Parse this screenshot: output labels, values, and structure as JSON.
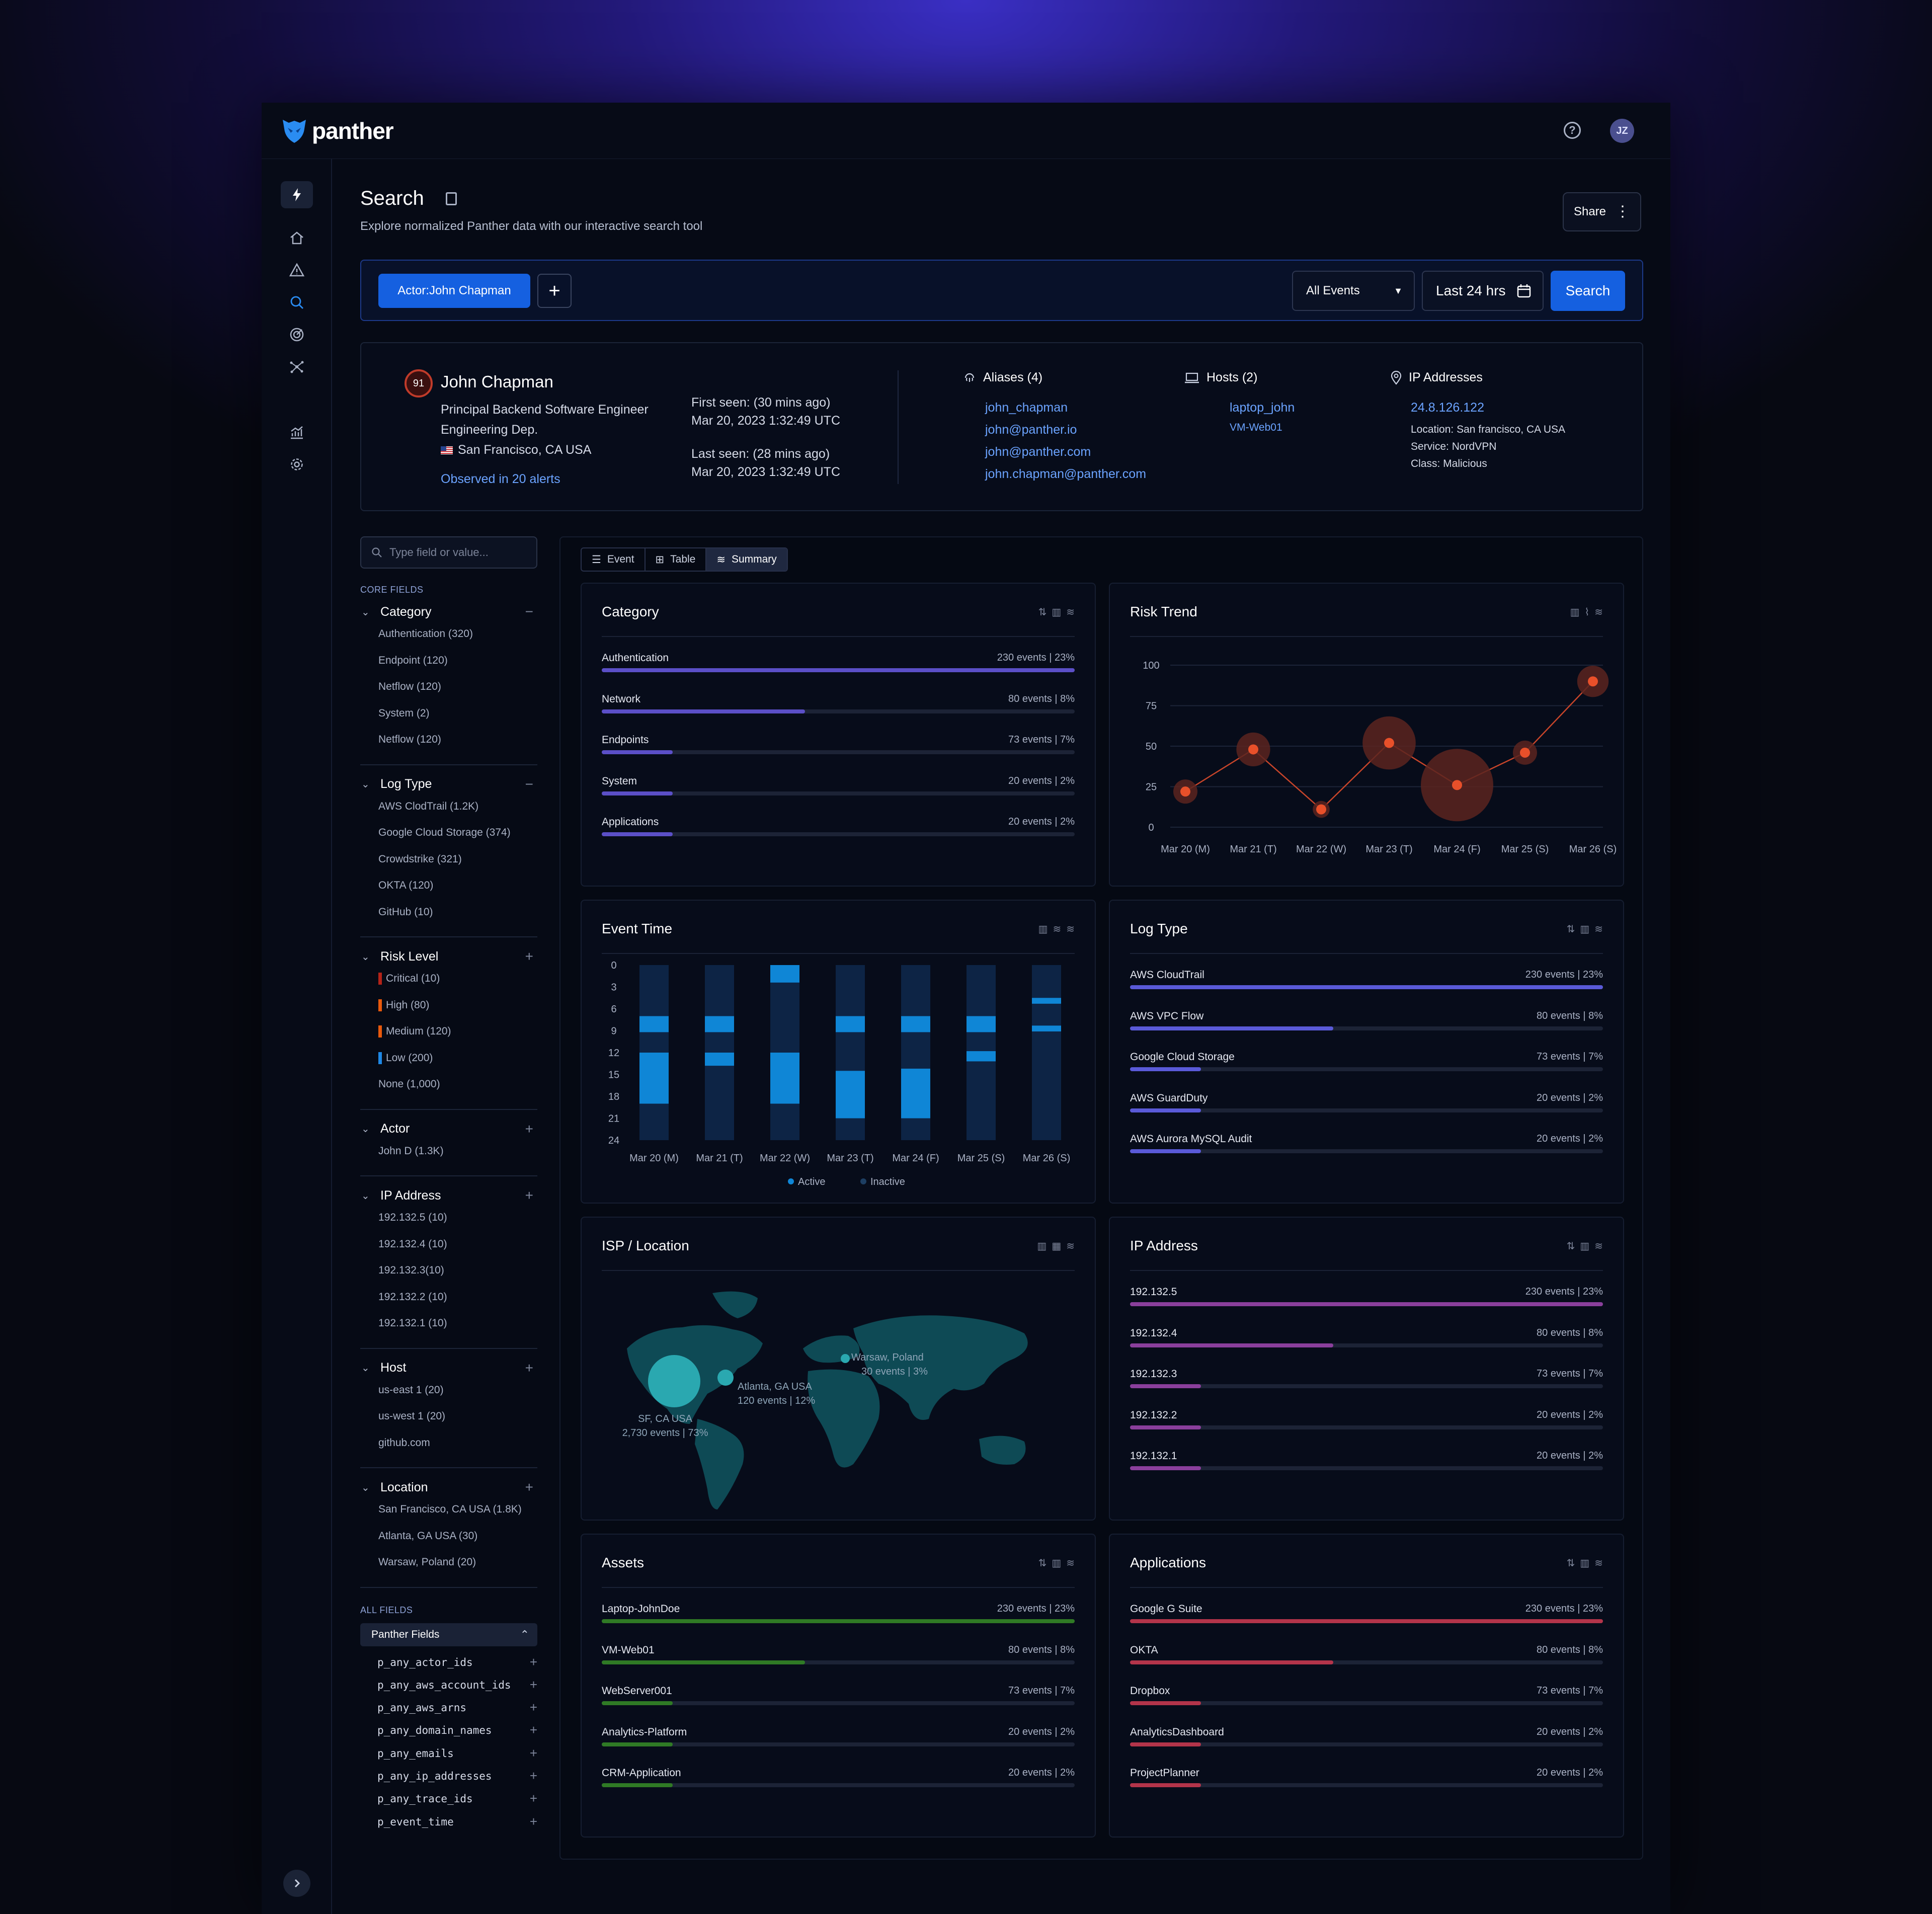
{
  "app": {
    "logo": "panther",
    "avatar": "JZ"
  },
  "page": {
    "title": "Search",
    "subtitle": "Explore normalized Panther data with our interactive search tool",
    "share": "Share"
  },
  "search": {
    "chip": "Actor:John Chapman",
    "events": "All Events",
    "range": "Last 24 hrs",
    "button": "Search"
  },
  "profile": {
    "risk": "91",
    "name": "John Chapman",
    "role": "Principal Backend Software Engineer",
    "dept": "Engineering Dep.",
    "location": "San Francisco, CA USA",
    "observed": "Observed in 20 alerts",
    "first_seen_label": "First seen: (30 mins ago)",
    "first_seen": "Mar 20, 2023 1:32:49 UTC",
    "last_seen_label": "Last seen: (28 mins ago)",
    "last_seen": "Mar 20, 2023 1:32:49 UTC",
    "aliases_title": "Aliases (4)",
    "aliases": [
      "john_chapman",
      "john@panther.io",
      "john@panther.com",
      "john.chapman@panther.com"
    ],
    "hosts_title": "Hosts (2)",
    "hosts": [
      "laptop_john",
      "VM-Web01"
    ],
    "ip_title": "IP Addresses",
    "ip": "24.8.126.122",
    "ip_location": "Location: San francisco, CA USA",
    "ip_service": "Service: NordVPN",
    "ip_class": "Class: Malicious"
  },
  "fields": {
    "placeholder": "Type field or value...",
    "core_label": "CORE FIELDS",
    "all_label": "ALL FIELDS",
    "panther_fields": "Panther Fields",
    "groups": [
      {
        "name": "Category",
        "sym": "−",
        "items": [
          "Authentication (320)",
          "Endpoint (120)",
          "Netflow (120)",
          "System  (2)",
          "Netflow (120)"
        ]
      },
      {
        "name": "Log Type",
        "sym": "−",
        "items": [
          "AWS ClodTrail (1.2K)",
          "Google Cloud Storage (374)",
          "Crowdstrike (321)",
          "OKTA (120)",
          "GitHub (10)"
        ]
      },
      {
        "name": "Risk Level",
        "sym": "+",
        "items": [
          "Critical (10)",
          "High (80)",
          "Medium (120)",
          "Low (200)",
          "None (1,000)"
        ]
      },
      {
        "name": "Actor",
        "sym": "+",
        "items": [
          "John D (1.3K)"
        ]
      },
      {
        "name": "IP Address",
        "sym": "+",
        "items": [
          "192.132.5 (10)",
          "192.132.4 (10)",
          "192.132.3(10)",
          "192.132.2 (10)",
          "192.132.1 (10)"
        ]
      },
      {
        "name": "Host",
        "sym": "+",
        "items": [
          "us-east 1 (20)",
          "us-west 1 (20)",
          "github.com"
        ]
      },
      {
        "name": "Location",
        "sym": "+",
        "items": [
          "San Francisco, CA USA (1.8K)",
          "Atlanta, GA USA (30)",
          "Warsaw, Poland (20)"
        ]
      }
    ],
    "risk_colors": [
      "#b42318",
      "#e8590c",
      "#e8590c",
      "#1e88e5",
      ""
    ],
    "panther_items": [
      "p_any_actor_ids",
      "p_any_aws_account_ids",
      "p_any_aws_arns",
      "p_any_domain_names",
      "p_any_emails",
      "p_any_ip_addresses",
      "p_any_trace_ids",
      "p_event_time"
    ]
  },
  "tabs": [
    "Event",
    "Table",
    "Summary"
  ],
  "cards": {
    "category": {
      "title": "Category",
      "color": "#5b4fc7",
      "rows": [
        {
          "label": "Authentication",
          "value": "230 events | 23%",
          "frac": 1.0
        },
        {
          "label": "Network",
          "value": "80 events | 8%",
          "frac": 0.43
        },
        {
          "label": "Endpoints",
          "value": "73 events | 7%",
          "frac": 0.15
        },
        {
          "label": "System",
          "value": "20 events | 2%",
          "frac": 0.15
        },
        {
          "label": "Applications",
          "value": "20 events | 2%",
          "frac": 0.15
        }
      ]
    },
    "logtype": {
      "title": "Log Type",
      "color": "#5a5ad8",
      "rows": [
        {
          "label": "AWS CloudTrail",
          "value": "230 events | 23%",
          "frac": 1.0
        },
        {
          "label": "AWS VPC Flow",
          "value": "80 events | 8%",
          "frac": 0.43
        },
        {
          "label": "Google Cloud Storage",
          "value": "73 events | 7%",
          "frac": 0.15
        },
        {
          "label": "AWS GuardDuty",
          "value": "20 events | 2%",
          "frac": 0.15
        },
        {
          "label": "AWS Aurora MySQL Audit",
          "value": "20 events | 2%",
          "frac": 0.15
        }
      ]
    },
    "ipaddr": {
      "title": "IP Address",
      "color": "#8a3f9c",
      "rows": [
        {
          "label": "192.132.5",
          "value": "230 events | 23%",
          "frac": 1.0
        },
        {
          "label": "192.132.4",
          "value": "80 events | 8%",
          "frac": 0.43
        },
        {
          "label": "192.132.3",
          "value": "73 events | 7%",
          "frac": 0.15
        },
        {
          "label": "192.132.2",
          "value": "20 events | 2%",
          "frac": 0.15
        },
        {
          "label": "192.132.1",
          "value": "20 events | 2%",
          "frac": 0.15
        }
      ]
    },
    "assets": {
      "title": "Assets",
      "color": "#2f7a25",
      "rows": [
        {
          "label": "Laptop-JohnDoe",
          "value": "230 events | 23%",
          "frac": 1.0
        },
        {
          "label": "VM-Web01",
          "value": "80 events | 8%",
          "frac": 0.43
        },
        {
          "label": "WebServer001",
          "value": "73 events | 7%",
          "frac": 0.15
        },
        {
          "label": "Analytics-Platform",
          "value": "20 events | 2%",
          "frac": 0.15
        },
        {
          "label": "CRM-Application",
          "value": "20 events | 2%",
          "frac": 0.15
        }
      ]
    },
    "apps": {
      "title": "Applications",
      "color": "#b3344a",
      "rows": [
        {
          "label": "Google G Suite",
          "value": "230 events | 23%",
          "frac": 1.0
        },
        {
          "label": "OKTA",
          "value": "80 events | 8%",
          "frac": 0.43
        },
        {
          "label": "Dropbox",
          "value": "73 events | 7%",
          "frac": 0.15
        },
        {
          "label": "AnalyticsDashboard",
          "value": "20 events | 2%",
          "frac": 0.15
        },
        {
          "label": "ProjectPlanner",
          "value": "20 events | 2%",
          "frac": 0.15
        }
      ]
    },
    "risk": {
      "title": "Risk Trend"
    },
    "eventtime": {
      "title": "Event Time"
    },
    "isp": {
      "title": "ISP / Location"
    }
  },
  "chart_data": [
    {
      "type": "scatter",
      "title": "Risk Trend",
      "categories": [
        "Mar 20 (M)",
        "Mar 21 (T)",
        "Mar 22 (W)",
        "Mar 23 (T)",
        "Mar 24 (F)",
        "Mar 25 (S)",
        "Mar 26 (S)"
      ],
      "values": [
        22,
        48,
        11,
        52,
        26,
        46,
        90
      ],
      "sizes": [
        1,
        1.4,
        0.7,
        2.2,
        3.0,
        1.0,
        1.3
      ],
      "ylim": [
        0,
        100
      ],
      "yticks": [
        0,
        25,
        50,
        75,
        100
      ],
      "grid": true,
      "color": "#e8502a"
    },
    {
      "type": "bar",
      "title": "Event Time",
      "categories": [
        "Mar 20 (M)",
        "Mar 21 (T)",
        "Mar 22 (W)",
        "Mar 23 (T)",
        "Mar 24 (F)",
        "Mar 25 (S)",
        "Mar 26 (S)"
      ],
      "yticks": [
        0,
        3,
        6,
        9,
        12,
        15,
        18,
        21,
        24
      ],
      "ylim": [
        0,
        24
      ],
      "legend": [
        "Active",
        "Inactive"
      ],
      "colors": {
        "active": "#0f86d6",
        "inactive": "#0d2445"
      },
      "active": [
        [
          [
            7,
            9.2
          ],
          [
            12,
            19
          ]
        ],
        [
          [
            7,
            9.2
          ],
          [
            12,
            13.8
          ]
        ],
        [
          [
            0,
            2.4
          ],
          [
            12,
            19
          ]
        ],
        [
          [
            7,
            9.2
          ],
          [
            14.5,
            21
          ]
        ],
        [
          [
            7,
            9.2
          ],
          [
            14.2,
            21
          ]
        ],
        [
          [
            7,
            9.2
          ],
          [
            11.8,
            13.2
          ]
        ],
        [
          [
            4.5,
            5.3
          ],
          [
            8.3,
            9.1
          ]
        ]
      ]
    },
    {
      "type": "bubble-map",
      "title": "ISP / Location",
      "color": "#2aa8b0",
      "points": [
        {
          "label": "SF, CA USA",
          "value": "2,730 events | 73%",
          "size": 3.0
        },
        {
          "label": "Atlanta, GA USA",
          "value": "120 events | 12%",
          "size": 0.9
        },
        {
          "label": "Warsaw, Poland",
          "value": "30 events | 3%",
          "size": 0.5
        }
      ]
    }
  ]
}
